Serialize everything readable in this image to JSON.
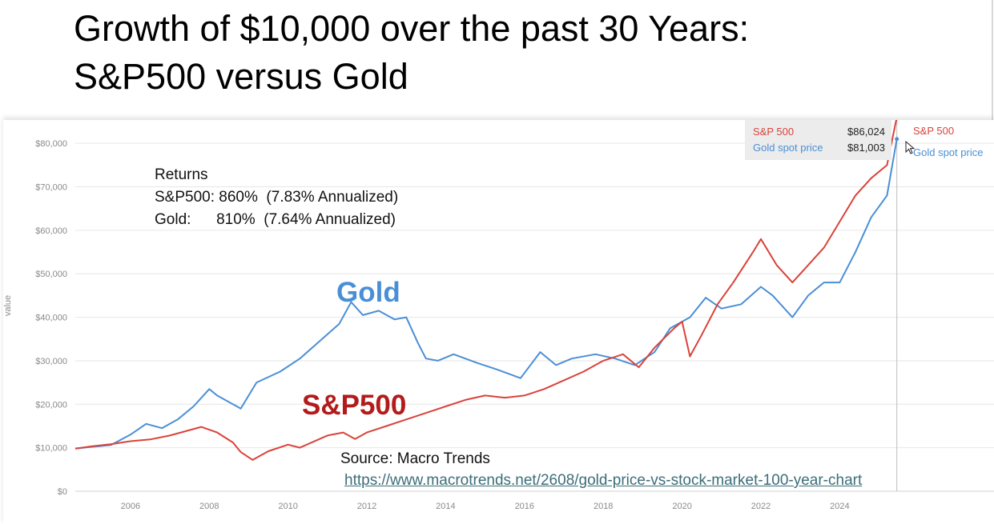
{
  "title": {
    "line1": "Growth of $10,000 over the past 30 Years:",
    "line2": "S&P500 versus Gold"
  },
  "annotations": {
    "returns_heading": "Returns",
    "returns_sp": "S&P500: 860%  (7.83% Annualized)",
    "returns_gold": "Gold:      810%  (7.64% Annualized)",
    "gold_label": "Gold",
    "sp_label": "S&P500",
    "source": "Source: Macro Trends",
    "source_url": "https://www.macrotrends.net/2608/gold-price-vs-stock-market-100-year-chart"
  },
  "tooltip": {
    "sp_name": "S&P 500",
    "sp_value": "$86,024",
    "gold_name": "Gold spot price",
    "gold_value": "$81,003"
  },
  "end_labels": {
    "sp": "S&P 500",
    "gold": "Gold spot price"
  },
  "colors": {
    "sp": "#d9433a",
    "gold": "#4a8fd6",
    "grid": "#e6e6e6"
  },
  "icons": {
    "cursor": "mouse-pointer-icon"
  },
  "chart_data": {
    "type": "line",
    "ylabel": "value",
    "xlabel": "",
    "ylim": [
      0,
      85000
    ],
    "xlim": [
      2004.6,
      2025.7
    ],
    "y_ticks": [
      0,
      10000,
      20000,
      30000,
      40000,
      50000,
      60000,
      70000,
      80000
    ],
    "y_tick_labels": [
      "$0",
      "$10,000",
      "$20,000",
      "$30,000",
      "$40,000",
      "$50,000",
      "$60,000",
      "$70,000",
      "$80,000"
    ],
    "x_ticks": [
      2006,
      2008,
      2010,
      2012,
      2014,
      2016,
      2018,
      2020,
      2022,
      2024
    ],
    "x_tick_labels": [
      "2006",
      "2008",
      "2010",
      "2012",
      "2014",
      "2016",
      "2018",
      "2020",
      "2022",
      "2024"
    ],
    "grid": true,
    "series": [
      {
        "name": "S&P 500",
        "color": "#d9433a",
        "x": [
          2004.6,
          2005.0,
          2005.5,
          2006.0,
          2006.5,
          2007.0,
          2007.4,
          2007.8,
          2008.2,
          2008.6,
          2008.8,
          2009.1,
          2009.5,
          2010.0,
          2010.3,
          2010.6,
          2011.0,
          2011.4,
          2011.7,
          2012.0,
          2012.5,
          2013.0,
          2013.5,
          2014.0,
          2014.5,
          2015.0,
          2015.5,
          2016.0,
          2016.5,
          2017.0,
          2017.5,
          2018.0,
          2018.5,
          2018.9,
          2019.3,
          2019.8,
          2020.0,
          2020.2,
          2020.5,
          2020.9,
          2021.3,
          2021.8,
          2022.0,
          2022.4,
          2022.8,
          2023.2,
          2023.6,
          2024.0,
          2024.4,
          2024.8,
          2025.2,
          2025.45
        ],
        "values": [
          9800,
          10300,
          10800,
          11500,
          11900,
          12800,
          13800,
          14800,
          13500,
          11200,
          9000,
          7200,
          9200,
          10700,
          10000,
          11200,
          12800,
          13500,
          12000,
          13500,
          15000,
          16500,
          18000,
          19500,
          21000,
          22000,
          21500,
          22000,
          23500,
          25500,
          27500,
          30000,
          31500,
          28500,
          33000,
          37500,
          39000,
          31000,
          36000,
          43000,
          48000,
          55000,
          58000,
          52000,
          48000,
          52000,
          56000,
          62000,
          68000,
          72000,
          75000,
          86024
        ]
      },
      {
        "name": "Gold spot price",
        "color": "#4a8fd6",
        "x": [
          2004.6,
          2005.0,
          2005.5,
          2006.0,
          2006.4,
          2006.8,
          2007.2,
          2007.6,
          2008.0,
          2008.2,
          2008.8,
          2009.2,
          2009.8,
          2010.3,
          2010.8,
          2011.3,
          2011.6,
          2011.9,
          2012.3,
          2012.7,
          2013.0,
          2013.3,
          2013.5,
          2013.8,
          2014.2,
          2014.8,
          2015.3,
          2015.9,
          2016.4,
          2016.8,
          2017.2,
          2017.8,
          2018.3,
          2018.8,
          2019.3,
          2019.7,
          2020.2,
          2020.6,
          2021.0,
          2021.5,
          2022.0,
          2022.3,
          2022.8,
          2023.2,
          2023.6,
          2024.0,
          2024.4,
          2024.8,
          2025.2,
          2025.45
        ],
        "values": [
          9800,
          10200,
          10600,
          13000,
          15500,
          14500,
          16500,
          19500,
          23500,
          22000,
          19000,
          25000,
          27500,
          30500,
          34500,
          38500,
          43500,
          40500,
          41500,
          39500,
          40000,
          34000,
          30500,
          30000,
          31500,
          29500,
          28000,
          26000,
          32000,
          29000,
          30500,
          31500,
          30500,
          29000,
          32000,
          37500,
          40000,
          44500,
          42000,
          43000,
          47000,
          45000,
          40000,
          45000,
          48000,
          48000,
          55000,
          63000,
          68000,
          81003
        ]
      }
    ]
  }
}
